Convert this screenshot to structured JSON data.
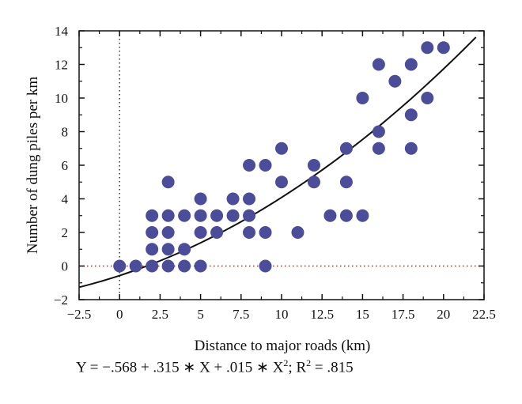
{
  "chart_data": {
    "type": "scatter",
    "xlabel": "Distance to major roads (km)",
    "ylabel": "Number of dung piles per km",
    "xlim": [
      -2.5,
      22.5
    ],
    "ylim": [
      -2,
      14
    ],
    "x_ticks": [
      "−2.5",
      "0",
      "2.5",
      "5",
      "7.5",
      "10",
      "12.5",
      "15",
      "17.5",
      "20",
      "22.5"
    ],
    "y_ticks": [
      "−2",
      "0",
      "2",
      "4",
      "6",
      "8",
      "10",
      "12",
      "14"
    ],
    "marker_color": "#4b4c9a",
    "line_color": "#111111",
    "reference_line_color": "#a0302a",
    "grid": false,
    "points": [
      {
        "x": 0,
        "y": 0
      },
      {
        "x": 1,
        "y": 0
      },
      {
        "x": 2,
        "y": 0
      },
      {
        "x": 2,
        "y": 1
      },
      {
        "x": 2,
        "y": 2
      },
      {
        "x": 2,
        "y": 3
      },
      {
        "x": 3,
        "y": 0
      },
      {
        "x": 3,
        "y": 1
      },
      {
        "x": 3,
        "y": 2
      },
      {
        "x": 3,
        "y": 3
      },
      {
        "x": 3,
        "y": 5
      },
      {
        "x": 4,
        "y": 0
      },
      {
        "x": 4,
        "y": 1
      },
      {
        "x": 4,
        "y": 3
      },
      {
        "x": 5,
        "y": 0
      },
      {
        "x": 5,
        "y": 2
      },
      {
        "x": 5,
        "y": 3
      },
      {
        "x": 5,
        "y": 4
      },
      {
        "x": 6,
        "y": 2
      },
      {
        "x": 6,
        "y": 3
      },
      {
        "x": 7,
        "y": 3
      },
      {
        "x": 7,
        "y": 4
      },
      {
        "x": 8,
        "y": 2
      },
      {
        "x": 8,
        "y": 3
      },
      {
        "x": 8,
        "y": 4
      },
      {
        "x": 8,
        "y": 6
      },
      {
        "x": 9,
        "y": 0
      },
      {
        "x": 9,
        "y": 2
      },
      {
        "x": 9,
        "y": 6
      },
      {
        "x": 10,
        "y": 5
      },
      {
        "x": 10,
        "y": 7
      },
      {
        "x": 11,
        "y": 2
      },
      {
        "x": 12,
        "y": 5
      },
      {
        "x": 12,
        "y": 6
      },
      {
        "x": 13,
        "y": 3
      },
      {
        "x": 14,
        "y": 3
      },
      {
        "x": 14,
        "y": 5
      },
      {
        "x": 14,
        "y": 7
      },
      {
        "x": 15,
        "y": 3
      },
      {
        "x": 15,
        "y": 10
      },
      {
        "x": 16,
        "y": 7
      },
      {
        "x": 16,
        "y": 8
      },
      {
        "x": 16,
        "y": 12
      },
      {
        "x": 17,
        "y": 11
      },
      {
        "x": 18,
        "y": 7
      },
      {
        "x": 18,
        "y": 9
      },
      {
        "x": 18,
        "y": 12
      },
      {
        "x": 19,
        "y": 10
      },
      {
        "x": 19,
        "y": 13
      },
      {
        "x": 20,
        "y": 13
      }
    ],
    "fit": {
      "intercept": -0.568,
      "linear": 0.315,
      "quadratic": 0.015,
      "x_range": [
        -2.5,
        22
      ]
    }
  },
  "equation": {
    "prefix": "Y = −.568 + .315 ∗ X + .015 ∗ X",
    "exponent": "2",
    "suffix": "; R",
    "r_exponent": "2",
    "r_value": " = .815"
  }
}
